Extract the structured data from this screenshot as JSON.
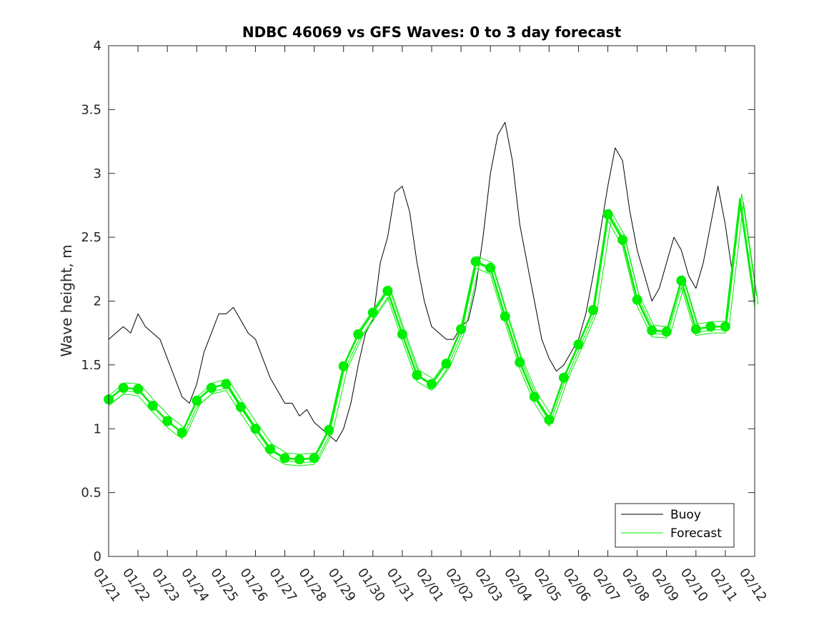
{
  "chart_data": {
    "type": "line",
    "title": "NDBC 46069 vs GFS Waves: 0 to 3 day forecast",
    "xlabel": "",
    "ylabel": "Wave height, m",
    "ylim": [
      0,
      4
    ],
    "yticks": [
      0,
      0.5,
      1,
      1.5,
      2,
      2.5,
      3,
      3.5,
      4
    ],
    "ytick_labels": [
      "0",
      "0.5",
      "1",
      "1.5",
      "2",
      "2.5",
      "3",
      "3.5",
      "4"
    ],
    "xlim_days": [
      0,
      22
    ],
    "xtick_labels": [
      "01/21",
      "01/22",
      "01/23",
      "01/24",
      "01/25",
      "01/26",
      "01/27",
      "01/28",
      "01/29",
      "01/30",
      "01/31",
      "02/01",
      "02/02",
      "02/03",
      "02/04",
      "02/05",
      "02/06",
      "02/07",
      "02/08",
      "02/09",
      "02/10",
      "02/11",
      "02/12"
    ],
    "legend": {
      "location": "bottom-right",
      "entries": [
        {
          "label": "Buoy",
          "color": "#000000"
        },
        {
          "label": "Forecast",
          "color": "#00ee00"
        }
      ]
    },
    "series": [
      {
        "name": "Buoy",
        "color": "#000000",
        "x": [
          0,
          0.25,
          0.5,
          0.75,
          1,
          1.25,
          1.5,
          1.75,
          2,
          2.25,
          2.5,
          2.75,
          3,
          3.25,
          3.5,
          3.75,
          4,
          4.25,
          4.5,
          4.75,
          5,
          5.25,
          5.5,
          5.75,
          6,
          6.25,
          6.5,
          6.75,
          7,
          7.25,
          7.5,
          7.75,
          8,
          8.25,
          8.5,
          8.75,
          9,
          9.25,
          9.5,
          9.75,
          10,
          10.25,
          10.5,
          10.75,
          11,
          11.25,
          11.5,
          11.75,
          12,
          12.25,
          12.5,
          12.75,
          13,
          13.25,
          13.5,
          13.75,
          14,
          14.25,
          14.5,
          14.75,
          15,
          15.25,
          15.5,
          15.75,
          16,
          16.25,
          16.5,
          16.75,
          17,
          17.25,
          17.5,
          17.75,
          18,
          18.25,
          18.5,
          18.75,
          19,
          19.25,
          19.5,
          19.75,
          20,
          20.25,
          20.5,
          20.75,
          21,
          21.25
        ],
        "values": [
          1.7,
          1.75,
          1.8,
          1.75,
          1.9,
          1.8,
          1.75,
          1.7,
          1.55,
          1.4,
          1.25,
          1.2,
          1.35,
          1.6,
          1.75,
          1.9,
          1.9,
          1.95,
          1.85,
          1.75,
          1.7,
          1.55,
          1.4,
          1.3,
          1.2,
          1.2,
          1.1,
          1.15,
          1.05,
          1.0,
          0.95,
          0.9,
          1.0,
          1.2,
          1.5,
          1.75,
          1.85,
          2.3,
          2.5,
          2.85,
          2.9,
          2.7,
          2.3,
          2.0,
          1.8,
          1.75,
          1.7,
          1.7,
          1.8,
          1.85,
          2.1,
          2.5,
          3.0,
          3.3,
          3.4,
          3.1,
          2.6,
          2.3,
          2.0,
          1.7,
          1.55,
          1.45,
          1.5,
          1.6,
          1.7,
          1.9,
          2.2,
          2.55,
          2.9,
          3.2,
          3.1,
          2.7,
          2.4,
          2.2,
          2.0,
          2.1,
          2.3,
          2.5,
          2.4,
          2.2,
          2.1,
          2.3,
          2.6,
          2.9,
          2.6,
          2.2
        ]
      },
      {
        "name": "Forecast",
        "color": "#00ee00",
        "x": [
          0,
          0.5,
          1,
          1.5,
          2,
          2.5,
          3,
          3.5,
          4,
          4.5,
          5,
          5.5,
          6,
          6.5,
          7,
          7.5,
          8,
          8.5,
          9,
          9.5,
          10,
          10.5,
          11,
          11.5,
          12,
          12.5,
          13,
          13.5,
          14,
          14.5,
          15,
          15.5,
          16,
          16.5,
          17,
          17.5,
          18,
          18.5,
          19,
          19.5,
          20,
          20.5,
          21,
          21.5,
          22
        ],
        "values": [
          1.23,
          1.32,
          1.31,
          1.18,
          1.06,
          0.97,
          1.22,
          1.32,
          1.35,
          1.17,
          1.0,
          0.84,
          0.77,
          0.76,
          0.77,
          0.99,
          1.49,
          1.74,
          1.91,
          2.08,
          1.74,
          1.42,
          1.35,
          1.51,
          1.78,
          2.31,
          2.26,
          1.88,
          1.52,
          1.25,
          1.07,
          1.4,
          1.66,
          1.93,
          2.68,
          2.48,
          2.01,
          1.77,
          1.76,
          2.16,
          1.78,
          1.8,
          1.8,
          2.8,
          2.0
        ]
      }
    ],
    "markers": {
      "series": "Forecast",
      "x": [
        0,
        0.5,
        1,
        1.5,
        2,
        2.5,
        3,
        3.5,
        4,
        4.5,
        5,
        5.5,
        6,
        6.5,
        7,
        7.5,
        8,
        8.5,
        9,
        9.5,
        10,
        10.5,
        11,
        11.5,
        12,
        12.5,
        13,
        13.5,
        14,
        14.5,
        15,
        15.5,
        16,
        16.5,
        17,
        17.5,
        18,
        18.5,
        19,
        19.5,
        20,
        20.5,
        21
      ],
      "values": [
        1.23,
        1.32,
        1.31,
        1.18,
        1.06,
        0.97,
        1.22,
        1.32,
        1.35,
        1.17,
        1.0,
        0.84,
        0.77,
        0.76,
        0.77,
        0.99,
        1.49,
        1.74,
        1.91,
        2.08,
        1.74,
        1.42,
        1.35,
        1.51,
        1.78,
        2.31,
        2.26,
        1.88,
        1.52,
        1.25,
        1.07,
        1.4,
        1.66,
        1.93,
        2.68,
        2.48,
        2.01,
        1.77,
        1.76,
        2.16,
        1.78,
        1.8,
        1.8
      ]
    }
  }
}
